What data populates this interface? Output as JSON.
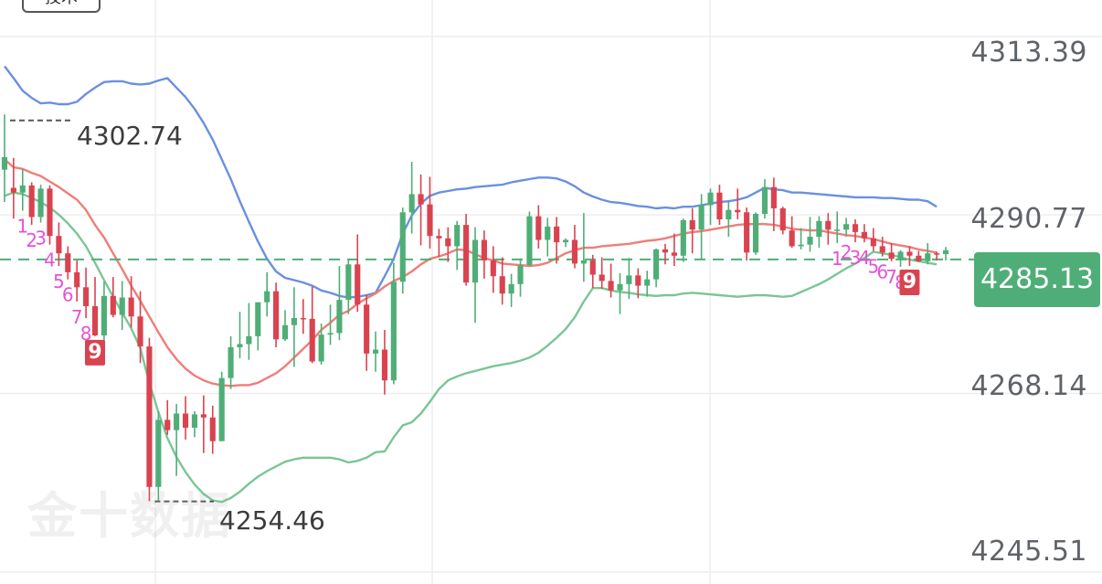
{
  "top_tab": {
    "label": "技术"
  },
  "watermark": {
    "text": "金十数据"
  },
  "price_axis": {
    "labels": [
      "4313.39",
      "4290.77",
      "4268.14",
      "4245.51"
    ]
  },
  "current_price": {
    "label": "4285.13",
    "value": 4285.13,
    "color": "#4fae77"
  },
  "extremes": {
    "high": {
      "label": "4302.74",
      "value": 4302.74
    },
    "low": {
      "label": "4254.46",
      "value": 4254.46
    }
  },
  "colors": {
    "up": "#4fae77",
    "down": "#d9434f",
    "upper_band": "#6b8fe0",
    "middle_band": "#f07d78",
    "lower_band": "#7bc596",
    "td_marker": "#e453d7",
    "td9_badge": "#d9434f"
  },
  "td_sequences": [
    {
      "labels": [
        "1",
        "2",
        "3",
        "4",
        "5",
        "6",
        "7",
        "8",
        "9"
      ],
      "direction": "down"
    },
    {
      "labels": [
        "1",
        "2",
        "3",
        "4",
        "5",
        "6",
        "7",
        "8",
        "9"
      ],
      "direction": "down"
    }
  ],
  "chart_data": {
    "type": "candlestick",
    "y_axis_ticks": [
      4313.39,
      4290.77,
      4268.14,
      4245.51
    ],
    "ylim": [
      4244.0,
      4318.0
    ],
    "current_price_line": 4285.13,
    "high_marker": 4302.74,
    "low_marker": 4254.46,
    "candles": [
      [
        4296.5,
        4303.5,
        4292.4,
        4298.1
      ],
      [
        4294.2,
        4298.0,
        4290.3,
        4293.6
      ],
      [
        4293.6,
        4296.6,
        4291.3,
        4294.5
      ],
      [
        4294.5,
        4294.9,
        4289.5,
        4290.5
      ],
      [
        4290.5,
        4294.6,
        4289.8,
        4294.1
      ],
      [
        4294.1,
        4294.5,
        4287.0,
        4288.1
      ],
      [
        4288.1,
        4289.8,
        4284.3,
        4285.9
      ],
      [
        4285.9,
        4286.8,
        4282.6,
        4283.5
      ],
      [
        4283.5,
        4285.0,
        4279.8,
        4281.6
      ],
      [
        4281.6,
        4284.1,
        4277.7,
        4279.2
      ],
      [
        4279.2,
        4282.9,
        4275.4,
        4275.5
      ],
      [
        4275.5,
        4282.3,
        4274.5,
        4280.5
      ],
      [
        4280.5,
        4282.9,
        4277.8,
        4278.1
      ],
      [
        4278.1,
        4282.4,
        4276.2,
        4280.3
      ],
      [
        4280.3,
        4283.0,
        4276.5,
        4277.9
      ],
      [
        4277.9,
        4281.1,
        4272.0,
        4274.1
      ],
      [
        4274.1,
        4275.2,
        4254.5,
        4256.3
      ],
      [
        4256.3,
        4265.9,
        4254.5,
        4264.8
      ],
      [
        4264.8,
        4267.3,
        4262.9,
        4263.5
      ],
      [
        4263.5,
        4266.8,
        4257.7,
        4265.6
      ],
      [
        4265.6,
        4267.8,
        4262.3,
        4263.8
      ],
      [
        4263.8,
        4265.9,
        4262.6,
        4265.5
      ],
      [
        4265.5,
        4267.9,
        4260.6,
        4265.1
      ],
      [
        4265.1,
        4266.6,
        4260.5,
        4262.1
      ],
      [
        4262.1,
        4270.9,
        4262.1,
        4270.1
      ],
      [
        4270.1,
        4275.4,
        4268.7,
        4274.0
      ],
      [
        4274.0,
        4278.5,
        4272.6,
        4274.4
      ],
      [
        4274.4,
        4279.6,
        4272.4,
        4275.4
      ],
      [
        4275.4,
        4279.7,
        4273.6,
        4279.7
      ],
      [
        4279.7,
        4283.5,
        4277.9,
        4281.1
      ],
      [
        4281.1,
        4282.2,
        4274.0,
        4275.0
      ],
      [
        4275.0,
        4278.7,
        4274.8,
        4276.8
      ],
      [
        4276.8,
        4281.6,
        4271.5,
        4277.7
      ],
      [
        4277.7,
        4280.1,
        4275.7,
        4277.6
      ],
      [
        4277.6,
        4281.7,
        4272.0,
        4272.2
      ],
      [
        4272.2,
        4277.0,
        4271.8,
        4275.6
      ],
      [
        4275.6,
        4279.4,
        4274.3,
        4275.8
      ],
      [
        4275.8,
        4284.3,
        4274.9,
        4280.0
      ],
      [
        4280.0,
        4285.1,
        4278.2,
        4284.5
      ],
      [
        4284.5,
        4288.3,
        4278.5,
        4279.4
      ],
      [
        4279.4,
        4280.7,
        4271.0,
        4273.2
      ],
      [
        4273.2,
        4276.0,
        4270.9,
        4273.7
      ],
      [
        4273.7,
        4276.2,
        4268.0,
        4269.8
      ],
      [
        4269.8,
        4284.7,
        4269.3,
        4282.3
      ],
      [
        4282.3,
        4291.7,
        4280.8,
        4291.1
      ],
      [
        4291.1,
        4297.5,
        4288.4,
        4293.4
      ],
      [
        4293.4,
        4295.9,
        4286.9,
        4292.1
      ],
      [
        4292.1,
        4295.6,
        4286.5,
        4288.1
      ],
      [
        4288.1,
        4289.0,
        4285.5,
        4287.8
      ],
      [
        4287.8,
        4289.2,
        4284.8,
        4286.8
      ],
      [
        4286.8,
        4290.0,
        4283.8,
        4289.5
      ],
      [
        4289.5,
        4290.9,
        4281.8,
        4282.2
      ],
      [
        4282.2,
        4289.2,
        4277.1,
        4287.6
      ],
      [
        4287.6,
        4288.8,
        4282.7,
        4285.0
      ],
      [
        4285.0,
        4286.8,
        4280.9,
        4283.0
      ],
      [
        4283.0,
        4285.4,
        4279.4,
        4280.8
      ],
      [
        4280.8,
        4283.3,
        4279.1,
        4282.0
      ],
      [
        4282.0,
        4285.1,
        4280.4,
        4284.4
      ],
      [
        4284.4,
        4291.2,
        4284.3,
        4290.6
      ],
      [
        4290.6,
        4292.0,
        4286.5,
        4287.6
      ],
      [
        4287.6,
        4290.4,
        4285.5,
        4289.3
      ],
      [
        4289.3,
        4290.5,
        4284.6,
        4287.3
      ],
      [
        4287.3,
        4287.8,
        4286.7,
        4287.6
      ],
      [
        4287.6,
        4289.5,
        4284.0,
        4284.6
      ],
      [
        4284.6,
        4291.0,
        4282.3,
        4285.0
      ],
      [
        4285.0,
        4285.7,
        4281.5,
        4283.2
      ],
      [
        4283.2,
        4285.4,
        4281.4,
        4282.4
      ],
      [
        4282.4,
        4284.6,
        4280.3,
        4281.2
      ],
      [
        4281.2,
        4283.4,
        4278.2,
        4282.0
      ],
      [
        4282.0,
        4285.3,
        4280.1,
        4283.1
      ],
      [
        4283.1,
        4284.0,
        4280.2,
        4281.8
      ],
      [
        4281.8,
        4283.7,
        4280.4,
        4282.6
      ],
      [
        4282.6,
        4286.5,
        4281.6,
        4286.4
      ],
      [
        4286.4,
        4287.1,
        4284.5,
        4286.0
      ],
      [
        4286.0,
        4288.4,
        4284.3,
        4285.6
      ],
      [
        4285.6,
        4290.3,
        4284.8,
        4290.1
      ],
      [
        4290.1,
        4291.6,
        4285.9,
        4288.9
      ],
      [
        4288.9,
        4293.4,
        4285.2,
        4292.0
      ],
      [
        4292.0,
        4294.1,
        4289.5,
        4293.6
      ],
      [
        4293.6,
        4294.6,
        4289.5,
        4290.2
      ],
      [
        4290.2,
        4292.5,
        4288.0,
        4291.4
      ],
      [
        4291.4,
        4294.1,
        4290.2,
        4291.1
      ],
      [
        4291.1,
        4291.7,
        4285.0,
        4286.0
      ],
      [
        4286.0,
        4291.1,
        4285.7,
        4290.9
      ],
      [
        4290.9,
        4295.3,
        4290.3,
        4294.3
      ],
      [
        4294.3,
        4295.5,
        4288.7,
        4291.6
      ],
      [
        4291.6,
        4291.8,
        4288.3,
        4288.8
      ],
      [
        4288.8,
        4290.6,
        4286.6,
        4286.8
      ],
      [
        4286.8,
        4289.1,
        4286.4,
        4287.0
      ],
      [
        4287.0,
        4290.5,
        4286.1,
        4288.0
      ],
      [
        4288.0,
        4290.6,
        4286.6,
        4290.0
      ],
      [
        4290.0,
        4291.0,
        4287.0,
        4288.9
      ],
      [
        4288.9,
        4291.2,
        4287.2,
        4288.9
      ],
      [
        4288.9,
        4290.4,
        4288.0,
        4289.6
      ],
      [
        4289.6,
        4290.2,
        4287.3,
        4288.6
      ],
      [
        4288.6,
        4289.6,
        4287.3,
        4287.8
      ],
      [
        4287.8,
        4289.1,
        4286.2,
        4286.8
      ],
      [
        4286.8,
        4288.0,
        4285.5,
        4286.0
      ],
      [
        4286.0,
        4287.2,
        4284.9,
        4285.2
      ],
      [
        4285.2,
        4286.3,
        4284.2,
        4286.1
      ],
      [
        4286.1,
        4286.8,
        4284.3,
        4285.6
      ],
      [
        4285.6,
        4286.2,
        4284.8,
        4284.9
      ],
      [
        4284.9,
        4287.2,
        4284.5,
        4285.9
      ],
      [
        4285.9,
        4286.1,
        4285.0,
        4285.8
      ],
      [
        4285.8,
        4286.7,
        4285.0,
        4286.3
      ]
    ],
    "middle_band": [
      4297.8,
      4296.8,
      4296.6,
      4296.1,
      4295.7,
      4295.0,
      4294.3,
      4293.5,
      4292.7,
      4291.4,
      4289.5,
      4287.9,
      4285.9,
      4283.9,
      4281.8,
      4279.9,
      4277.9,
      4275.9,
      4274.0,
      4272.5,
      4271.3,
      4270.4,
      4269.8,
      4269.4,
      4269.2,
      4269.1,
      4269.2,
      4269.2,
      4269.5,
      4270.1,
      4270.7,
      4271.6,
      4272.7,
      4273.8,
      4274.9,
      4276.2,
      4277.1,
      4278.1,
      4278.6,
      4279.5,
      4280.2,
      4280.8,
      4281.7,
      4282.4,
      4282.9,
      4283.6,
      4284.5,
      4285.2,
      4285.5,
      4285.9,
      4286.4,
      4286.3,
      4285.8,
      4285.3,
      4285.0,
      4284.6,
      4284.5,
      4284.4,
      4284.3,
      4284.4,
      4284.7,
      4285.3,
      4285.9,
      4286.3,
      4286.6,
      4286.6,
      4286.8,
      4286.9,
      4287.0,
      4287.1,
      4287.3,
      4287.5,
      4287.6,
      4287.8,
      4288.1,
      4288.4,
      4288.6,
      4288.7,
      4288.9,
      4289.1,
      4289.3,
      4289.5,
      4289.6,
      4289.6,
      4289.6,
      4289.5,
      4289.3,
      4289.0,
      4288.9,
      4288.8,
      4288.8,
      4288.6,
      4288.4,
      4288.2,
      4288.1,
      4287.9,
      4287.7,
      4287.4,
      4287.1,
      4286.9,
      4286.7,
      4286.4,
      4286.2,
      4286.0
    ],
    "upper_band": [
      4309.6,
      4308.1,
      4306.5,
      4305.6,
      4304.9,
      4305.0,
      4304.8,
      4304.8,
      4305.1,
      4306.1,
      4306.9,
      4307.6,
      4307.7,
      4307.7,
      4307.4,
      4307.3,
      4307.4,
      4307.8,
      4308.1,
      4306.9,
      4305.7,
      4304.2,
      4302.4,
      4300.3,
      4297.8,
      4295.3,
      4292.5,
      4289.9,
      4287.4,
      4285.2,
      4283.6,
      4282.8,
      4282.5,
      4282.2,
      4281.8,
      4281.2,
      4280.9,
      4280.5,
      4280.3,
      4280.4,
      4280.6,
      4280.9,
      4283.0,
      4285.2,
      4288.4,
      4290.7,
      4292.2,
      4293.2,
      4293.6,
      4293.8,
      4294.0,
      4294.1,
      4294.3,
      4294.4,
      4294.5,
      4294.6,
      4294.9,
      4295.1,
      4295.3,
      4295.5,
      4295.5,
      4295.4,
      4295.0,
      4294.4,
      4293.6,
      4293.1,
      4292.7,
      4292.4,
      4292.3,
      4292.1,
      4291.9,
      4291.8,
      4291.6,
      4291.7,
      4291.6,
      4291.8,
      4291.8,
      4292.0,
      4292.2,
      4292.4,
      4292.5,
      4292.7,
      4293.0,
      4293.6,
      4294.2,
      4294.0,
      4293.9,
      4293.6,
      4293.6,
      4293.5,
      4293.4,
      4293.3,
      4293.2,
      4293.1,
      4293.0,
      4293.0,
      4293.0,
      4292.9,
      4292.9,
      4292.8,
      4292.7,
      4292.7,
      4292.5,
      4291.8
    ],
    "lower_band": [
      4293.2,
      4293.6,
      4293.4,
      4292.9,
      4292.4,
      4291.7,
      4290.8,
      4289.7,
      4288.4,
      4286.8,
      4284.7,
      4282.5,
      4280.4,
      4278.4,
      4276.4,
      4273.9,
      4269.5,
      4265.8,
      4262.5,
      4260.1,
      4258.2,
      4256.6,
      4255.4,
      4254.6,
      4254.4,
      4254.9,
      4255.7,
      4256.7,
      4257.6,
      4258.3,
      4258.9,
      4259.5,
      4259.8,
      4260.0,
      4260.0,
      4260.0,
      4260.0,
      4259.8,
      4259.4,
      4259.6,
      4260.0,
      4260.7,
      4260.8,
      4262.6,
      4264.1,
      4264.5,
      4265.6,
      4267.1,
      4268.7,
      4269.8,
      4270.3,
      4270.7,
      4271.0,
      4271.3,
      4271.6,
      4271.8,
      4272.0,
      4272.3,
      4272.7,
      4273.3,
      4274.2,
      4275.2,
      4276.3,
      4277.8,
      4279.8,
      4281.5,
      4281.5,
      4281.2,
      4281.0,
      4280.9,
      4280.7,
      4280.6,
      4280.5,
      4280.6,
      4280.6,
      4280.8,
      4280.9,
      4280.8,
      4280.7,
      4280.6,
      4280.5,
      4280.4,
      4280.5,
      4280.6,
      4280.6,
      4280.5,
      4280.4,
      4280.5,
      4281.0,
      4281.5,
      4282.0,
      4282.6,
      4283.3,
      4284.0,
      4284.6,
      4285.3,
      4286.1,
      4285.9,
      4285.7,
      4285.4,
      4285.1,
      4284.9,
      4284.7,
      4284.5
    ]
  }
}
